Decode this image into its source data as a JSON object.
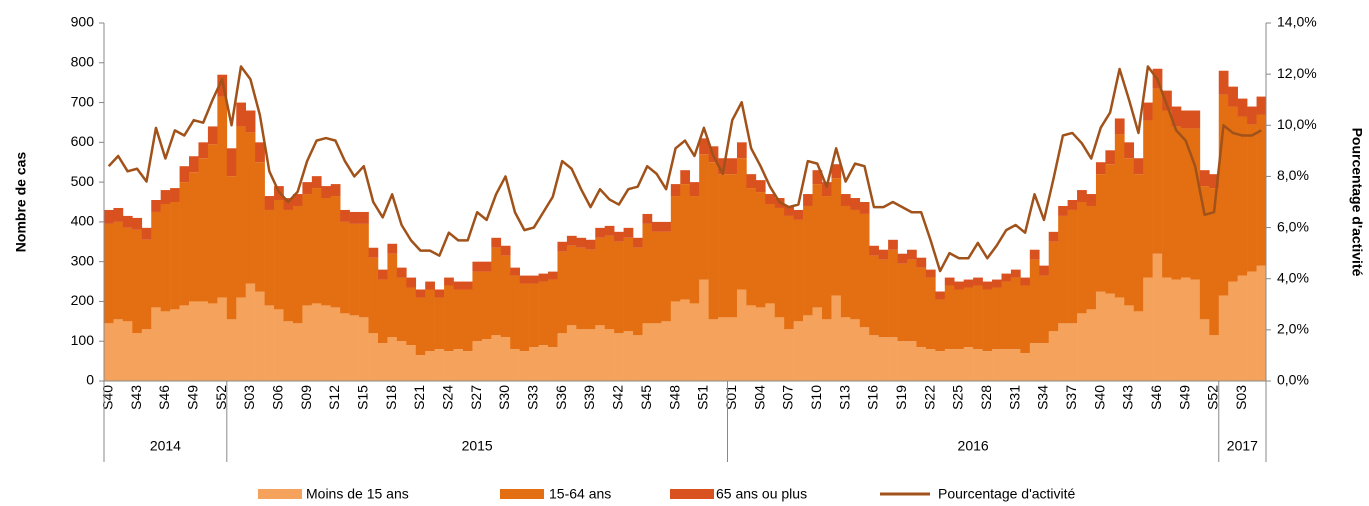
{
  "chart_data": {
    "type": "stacked_bar_line",
    "y_label": "Nombre de cas",
    "y2_label": "Pourcentage d'activité",
    "ylim": [
      0,
      900
    ],
    "yticks": [
      0,
      100,
      200,
      300,
      400,
      500,
      600,
      700,
      800,
      900
    ],
    "y2lim": [
      0,
      14
    ],
    "y2ticks": [
      {
        "value": 0,
        "label": "0,0%"
      },
      {
        "value": 2,
        "label": "2,0%"
      },
      {
        "value": 4,
        "label": "4,0%"
      },
      {
        "value": 6,
        "label": "6,0%"
      },
      {
        "value": 8,
        "label": "8,0%"
      },
      {
        "value": 10,
        "label": "10,0%"
      },
      {
        "value": 12,
        "label": "12,0%"
      },
      {
        "value": 14,
        "label": "14,0%"
      }
    ],
    "categories": [
      "S40",
      null,
      null,
      "S43",
      null,
      null,
      "S46",
      null,
      null,
      "S49",
      null,
      null,
      "S52",
      null,
      null,
      "S03",
      null,
      null,
      "S06",
      null,
      null,
      "S09",
      null,
      null,
      "S12",
      null,
      null,
      "S15",
      null,
      null,
      "S18",
      null,
      null,
      "S21",
      null,
      null,
      "S24",
      null,
      null,
      "S27",
      null,
      null,
      "S30",
      null,
      null,
      "S33",
      null,
      null,
      "S36",
      null,
      null,
      "S39",
      null,
      null,
      "S42",
      null,
      null,
      "S45",
      null,
      null,
      "S48",
      null,
      null,
      "S51",
      null,
      null,
      "S01",
      null,
      null,
      "S04",
      null,
      null,
      "S07",
      null,
      null,
      "S10",
      null,
      null,
      "S13",
      null,
      null,
      "S16",
      null,
      null,
      "S19",
      null,
      null,
      "S22",
      null,
      null,
      "S25",
      null,
      null,
      "S28",
      null,
      null,
      "S31",
      null,
      null,
      "S34",
      null,
      null,
      "S37",
      null,
      null,
      "S40",
      null,
      null,
      "S43",
      null,
      null,
      "S46",
      null,
      null,
      "S49",
      null,
      null,
      "S52",
      null,
      null,
      "S03",
      null,
      null
    ],
    "year_groups": [
      {
        "label": "2014",
        "weeks": 13
      },
      {
        "label": "2015",
        "weeks": 53
      },
      {
        "label": "2016",
        "weeks": 52
      },
      {
        "label": "2017",
        "weeks": 5
      }
    ],
    "series": [
      {
        "name": "Moins de 15 ans",
        "color": "#f5a35c",
        "values": [
          145,
          155,
          150,
          120,
          130,
          185,
          175,
          180,
          190,
          200,
          200,
          195,
          210,
          155,
          210,
          245,
          225,
          190,
          180,
          150,
          145,
          190,
          195,
          190,
          185,
          170,
          165,
          160,
          120,
          95,
          110,
          100,
          90,
          65,
          75,
          80,
          75,
          80,
          75,
          100,
          105,
          115,
          110,
          80,
          75,
          85,
          90,
          85,
          120,
          140,
          130,
          130,
          140,
          130,
          120,
          125,
          115,
          145,
          145,
          150,
          200,
          205,
          195,
          255,
          155,
          160,
          160,
          230,
          190,
          185,
          195,
          160,
          130,
          150,
          165,
          185,
          155,
          215,
          160,
          155,
          135,
          115,
          110,
          110,
          100,
          100,
          85,
          80,
          75,
          80,
          80,
          85,
          80,
          75,
          80,
          80,
          80,
          70,
          95,
          95,
          125,
          145,
          145,
          170,
          180,
          225,
          220,
          210,
          190,
          175,
          260,
          320,
          260,
          255,
          260,
          255,
          155,
          115,
          215,
          250,
          265,
          275,
          290
        ]
      },
      {
        "name": "15-64 ans",
        "color": "#e46f12",
        "values": [
          250,
          245,
          235,
          260,
          225,
          240,
          270,
          270,
          310,
          325,
          360,
          400,
          505,
          360,
          430,
          380,
          325,
          240,
          275,
          280,
          295,
          280,
          290,
          270,
          280,
          230,
          230,
          235,
          190,
          160,
          210,
          160,
          145,
          145,
          155,
          130,
          165,
          150,
          155,
          175,
          170,
          220,
          205,
          185,
          170,
          160,
          160,
          170,
          205,
          200,
          205,
          200,
          220,
          235,
          230,
          235,
          220,
          250,
          230,
          225,
          265,
          290,
          270,
          315,
          395,
          360,
          360,
          330,
          295,
          290,
          250,
          275,
          285,
          255,
          275,
          310,
          310,
          295,
          280,
          275,
          285,
          200,
          195,
          220,
          195,
          205,
          200,
          180,
          130,
          160,
          150,
          150,
          160,
          155,
          155,
          170,
          180,
          170,
          210,
          170,
          225,
          270,
          285,
          280,
          260,
          295,
          325,
          410,
          370,
          345,
          395,
          415,
          420,
          385,
          375,
          380,
          335,
          370,
          505,
          440,
          400,
          370,
          380
        ]
      },
      {
        "name": "65 ans ou plus",
        "color": "#d9511f",
        "values": [
          35,
          35,
          30,
          30,
          30,
          30,
          35,
          35,
          40,
          40,
          40,
          45,
          55,
          70,
          60,
          55,
          50,
          35,
          35,
          30,
          30,
          30,
          30,
          30,
          30,
          30,
          30,
          30,
          25,
          25,
          25,
          25,
          25,
          20,
          20,
          20,
          20,
          20,
          20,
          25,
          25,
          25,
          25,
          20,
          20,
          20,
          20,
          20,
          25,
          25,
          25,
          25,
          25,
          25,
          25,
          25,
          25,
          25,
          25,
          25,
          30,
          35,
          35,
          40,
          40,
          40,
          40,
          40,
          35,
          30,
          25,
          25,
          25,
          25,
          30,
          35,
          35,
          35,
          30,
          30,
          30,
          25,
          25,
          25,
          25,
          25,
          25,
          20,
          20,
          20,
          20,
          20,
          20,
          20,
          20,
          20,
          20,
          20,
          25,
          25,
          25,
          25,
          25,
          30,
          30,
          30,
          35,
          40,
          40,
          40,
          45,
          50,
          50,
          50,
          45,
          45,
          40,
          35,
          60,
          50,
          45,
          45,
          45
        ]
      },
      {
        "name": "Pourcentage d'activité",
        "color": "#a0521a",
        "axis": "y2",
        "values": [
          8.4,
          8.8,
          8.2,
          8.3,
          7.8,
          9.9,
          8.7,
          9.8,
          9.6,
          10.2,
          10.1,
          11.0,
          11.8,
          10.0,
          12.3,
          11.8,
          10.4,
          8.2,
          7.4,
          7.0,
          7.4,
          8.6,
          9.4,
          9.5,
          9.4,
          8.6,
          8.0,
          8.4,
          7.0,
          6.4,
          7.3,
          6.1,
          5.5,
          5.1,
          5.1,
          4.9,
          5.8,
          5.5,
          5.5,
          6.6,
          6.3,
          7.3,
          8.0,
          6.6,
          5.9,
          6.0,
          6.6,
          7.2,
          8.6,
          8.3,
          7.5,
          6.8,
          7.5,
          7.1,
          6.9,
          7.5,
          7.6,
          8.4,
          8.1,
          7.5,
          9.1,
          9.4,
          8.8,
          9.9,
          8.8,
          8.1,
          10.2,
          10.9,
          9.1,
          8.4,
          7.6,
          7.0,
          6.8,
          6.9,
          8.6,
          8.5,
          7.6,
          9.1,
          7.8,
          8.5,
          8.4,
          6.8,
          6.8,
          7.0,
          6.8,
          6.6,
          6.6,
          5.5,
          4.3,
          5.0,
          4.8,
          4.8,
          5.4,
          4.8,
          5.3,
          5.9,
          6.1,
          5.8,
          7.3,
          6.3,
          7.9,
          9.6,
          9.7,
          9.3,
          8.7,
          9.9,
          10.5,
          12.2,
          11.0,
          9.7,
          12.3,
          11.8,
          10.8,
          9.8,
          9.4,
          8.4,
          6.5,
          6.6,
          10.0,
          9.7,
          9.6,
          9.6,
          9.8
        ]
      }
    ]
  }
}
